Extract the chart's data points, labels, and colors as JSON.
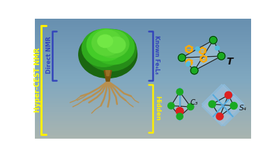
{
  "bg_colors": [
    "#8ab5cc",
    "#8ab5cc",
    "#7aa8c0",
    "#6d9db8",
    "#8eabaa",
    "#9eb8b5",
    "#a8bcb8",
    "#b0bfbb"
  ],
  "title": "Hyper-CEST NMR",
  "title_color": "#ffff00",
  "direct_nmr_label": "Direct NMR",
  "direct_nmr_color": "#3344bb",
  "known_label": "Known Fe₄L₆",
  "known_color": "#3344bb",
  "hidden_label": "Hidden",
  "hidden_color": "#ffff00",
  "bracket_color_yellow": "#ffee00",
  "bracket_color_blue": "#3344bb",
  "T_label": "T",
  "C3_label": "C₃",
  "S4_label": "S₄",
  "green_color": "#1aaa22",
  "red_color": "#dd2020",
  "blue_node_color": "#55bbdd",
  "orange_color": "#ffaa00",
  "cage_line_color": "#111111",
  "plane_color": "#aaddee"
}
